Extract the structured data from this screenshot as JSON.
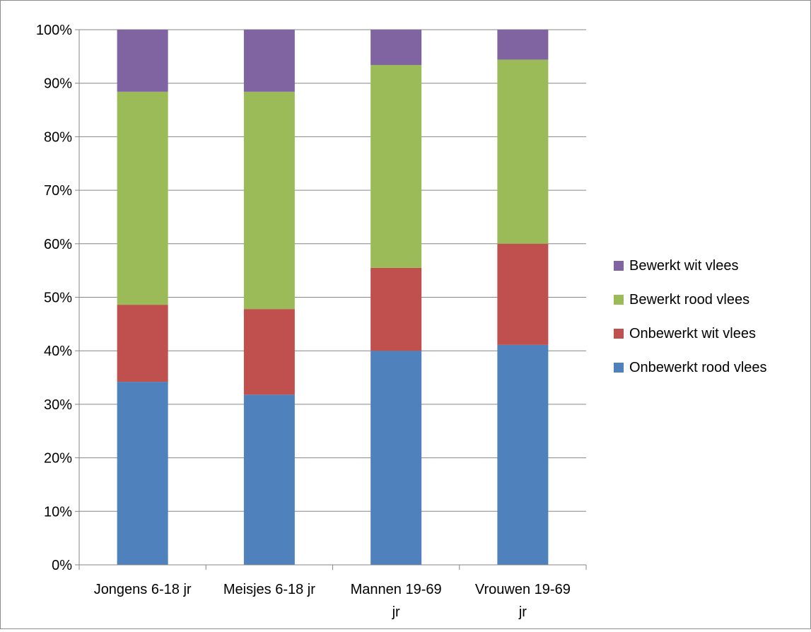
{
  "chart_data": {
    "type": "bar",
    "stacked": true,
    "percent_stacked": true,
    "title": "",
    "xlabel": "",
    "ylabel": "",
    "ylim": [
      0,
      100
    ],
    "y_ticks": [
      "0%",
      "10%",
      "20%",
      "30%",
      "40%",
      "50%",
      "60%",
      "70%",
      "80%",
      "90%",
      "100%"
    ],
    "grid": true,
    "legend_position": "right",
    "categories": [
      [
        "Jongens 6-18 jr"
      ],
      [
        "Meisjes 6-18 jr"
      ],
      [
        "Mannen 19-69",
        "jr"
      ],
      [
        "Vrouwen 19-69",
        "jr"
      ]
    ],
    "series": [
      {
        "name": "Onbewerkt rood vlees",
        "color": "#4f81bd",
        "values": [
          34.2,
          31.8,
          40.0,
          41.1
        ]
      },
      {
        "name": "Onbewerkt wit vlees",
        "color": "#c0504d",
        "values": [
          14.4,
          16.0,
          15.5,
          18.9
        ]
      },
      {
        "name": "Bewerkt rood vlees",
        "color": "#9bbb59",
        "values": [
          39.8,
          40.6,
          37.9,
          34.4
        ]
      },
      {
        "name": "Bewerkt wit vlees",
        "color": "#8064a2",
        "values": [
          11.6,
          11.6,
          6.6,
          5.6
        ]
      }
    ],
    "legend_order": [
      "Bewerkt wit vlees",
      "Bewerkt rood vlees",
      "Onbewerkt wit vlees",
      "Onbewerkt rood vlees"
    ]
  }
}
